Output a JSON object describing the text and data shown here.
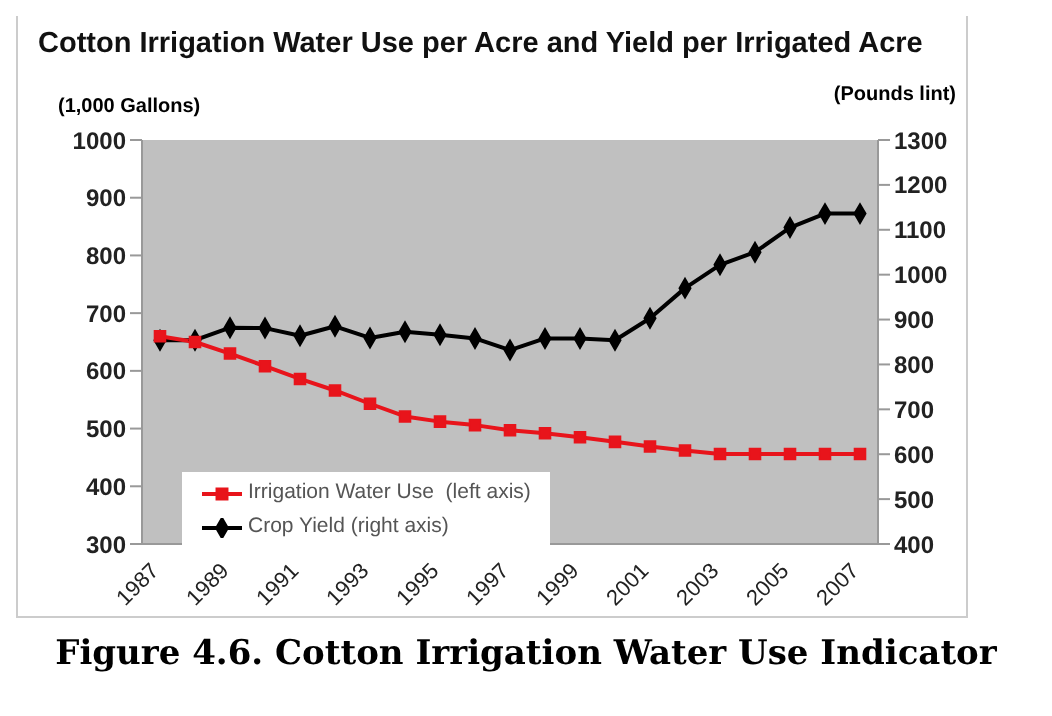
{
  "chart_data": {
    "type": "line",
    "title": "Cotton Irrigation Water Use per Acre and Yield per Irrigated Acre",
    "ylabel": "(1,000 Gallons)",
    "y2label": "(Pounds lint)",
    "annotations": [
      "Figure 4.6. Cotton Irrigation Water Use Indicator"
    ],
    "categories": [
      "1987",
      null,
      "1989",
      null,
      "1991",
      null,
      "1993",
      null,
      "1995",
      null,
      "1997",
      null,
      "1999",
      null,
      "2001",
      null,
      "2003",
      null,
      "2005",
      null,
      "2007"
    ],
    "series": [
      {
        "name": "Irrigation Water Use  (left axis)",
        "color": "#e8141b",
        "marker": "square",
        "values": [
          660,
          650,
          630,
          608,
          586,
          566,
          543,
          521,
          512,
          506,
          497,
          492,
          485,
          477,
          469,
          462,
          456,
          456,
          456,
          456,
          456
        ]
      },
      {
        "name": "Crop Yield (right axis)",
        "color": "#000000",
        "marker": "diamond",
        "axis": "y2",
        "values": [
          854,
          854,
          882,
          881,
          864,
          885,
          859,
          873,
          866,
          858,
          832,
          858,
          858,
          854,
          903,
          970,
          1022,
          1050,
          1105,
          1136,
          1136
        ]
      }
    ],
    "ylim": [
      300,
      1000
    ],
    "yticks": [
      300,
      400,
      500,
      600,
      700,
      800,
      900,
      1000
    ],
    "y2lim": [
      400,
      1300
    ],
    "y2ticks": [
      400,
      500,
      600,
      700,
      800,
      900,
      1000,
      1100,
      1200,
      1300
    ],
    "grid": false,
    "legend": "bottom left"
  }
}
